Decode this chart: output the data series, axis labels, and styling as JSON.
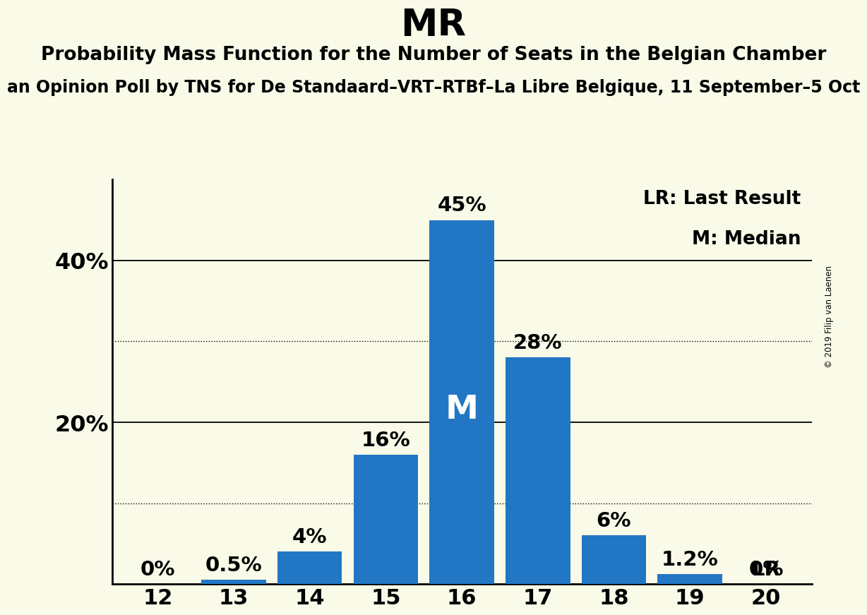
{
  "title": "MR",
  "subtitle": "Probability Mass Function for the Number of Seats in the Belgian Chamber",
  "subsubtitle": "an Opinion Poll by TNS for De Standaard–VRT–RTBf–La Libre Belgique, 11 September–5 Oct",
  "copyright": "© 2019 Filip van Laenen",
  "categories": [
    12,
    13,
    14,
    15,
    16,
    17,
    18,
    19,
    20
  ],
  "values": [
    0.0,
    0.5,
    4.0,
    16.0,
    45.0,
    28.0,
    6.0,
    1.2,
    0.0
  ],
  "bar_color": "#2277C4",
  "background_color": "#FAFAE8",
  "median_seat": 16,
  "last_result_seat": 20,
  "ylim": [
    0,
    50
  ],
  "solid_hlines": [
    20,
    40
  ],
  "dotted_hlines": [
    10,
    30
  ],
  "legend_lr": "LR: Last Result",
  "legend_m": "M: Median",
  "title_fontsize": 38,
  "subtitle_fontsize": 19,
  "subsubtitle_fontsize": 17,
  "bar_label_fontsize": 21,
  "axis_tick_fontsize": 22,
  "ytick_fontsize": 23,
  "legend_fontsize": 19,
  "median_label_fontsize": 34
}
